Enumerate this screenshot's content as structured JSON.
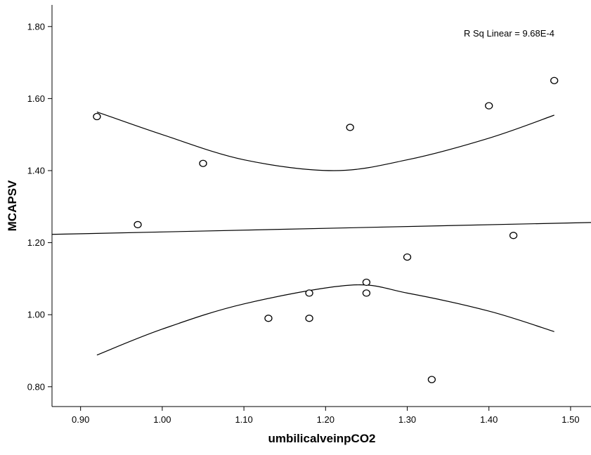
{
  "chart_data": {
    "type": "scatter",
    "title": "",
    "xlabel": "umbilicalveinpCO2",
    "ylabel": "MCAPSV",
    "annotation": "R Sq Linear = 9.68E-4",
    "xlim": [
      0.865,
      1.525
    ],
    "ylim": [
      0.745,
      1.86
    ],
    "x_ticks": [
      "0.90",
      "1.00",
      "1.10",
      "1.20",
      "1.30",
      "1.40",
      "1.50"
    ],
    "y_ticks": [
      "0.80",
      "1.00",
      "1.20",
      "1.40",
      "1.60",
      "1.80"
    ],
    "points": [
      {
        "x": 0.92,
        "y": 1.55
      },
      {
        "x": 0.97,
        "y": 1.25
      },
      {
        "x": 1.05,
        "y": 1.42
      },
      {
        "x": 1.13,
        "y": 0.99
      },
      {
        "x": 1.18,
        "y": 1.06
      },
      {
        "x": 1.18,
        "y": 0.99
      },
      {
        "x": 1.23,
        "y": 1.52
      },
      {
        "x": 1.25,
        "y": 1.09
      },
      {
        "x": 1.25,
        "y": 1.06
      },
      {
        "x": 1.3,
        "y": 1.16
      },
      {
        "x": 1.33,
        "y": 0.82
      },
      {
        "x": 1.4,
        "y": 1.58
      },
      {
        "x": 1.43,
        "y": 1.22
      },
      {
        "x": 1.48,
        "y": 1.65
      }
    ],
    "fit_line": {
      "x": [
        0.865,
        1.525
      ],
      "y": [
        1.223,
        1.256
      ]
    },
    "upper_band": [
      {
        "x": 0.92,
        "y": 1.563
      },
      {
        "x": 1.0,
        "y": 1.5
      },
      {
        "x": 1.1,
        "y": 1.43
      },
      {
        "x": 1.21,
        "y": 1.4
      },
      {
        "x": 1.3,
        "y": 1.43
      },
      {
        "x": 1.4,
        "y": 1.49
      },
      {
        "x": 1.48,
        "y": 1.554
      }
    ],
    "lower_band": [
      {
        "x": 0.92,
        "y": 0.888
      },
      {
        "x": 1.0,
        "y": 0.96
      },
      {
        "x": 1.1,
        "y": 1.03
      },
      {
        "x": 1.23,
        "y": 1.082
      },
      {
        "x": 1.3,
        "y": 1.06
      },
      {
        "x": 1.4,
        "y": 1.01
      },
      {
        "x": 1.48,
        "y": 0.953
      }
    ],
    "grid": false
  }
}
